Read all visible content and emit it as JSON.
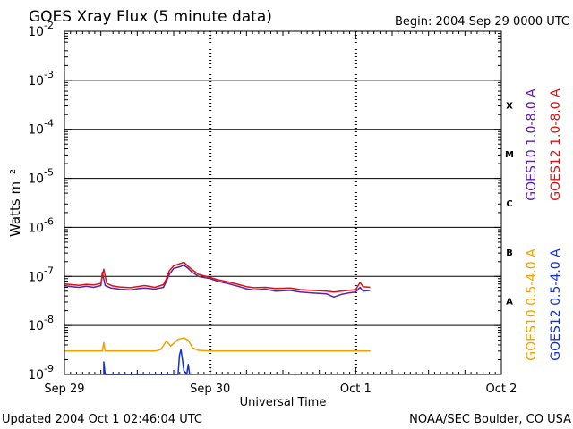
{
  "header": {
    "title": "GOES Xray Flux (5 minute data)",
    "begin": "Begin:  2004 Sep 29 0000 UTC"
  },
  "footer": {
    "updated": "Updated 2004 Oct  1 02:46:04 UTC",
    "credit": "NOAA/SEC Boulder, CO USA"
  },
  "chart_data": {
    "type": "line",
    "title": "GOES Xray Flux (5 minute data)",
    "xlabel": "Universal Time",
    "ylabel": "Watts m⁻²",
    "y_scale": "log",
    "ylim": [
      1e-09,
      0.01
    ],
    "xlim_days": [
      0,
      3
    ],
    "x_ticks": [
      {
        "label": "Sep 29",
        "day": 0
      },
      {
        "label": "Sep 30",
        "day": 1
      },
      {
        "label": "Oct 1",
        "day": 2
      },
      {
        "label": "Oct 2",
        "day": 3
      }
    ],
    "y_ticks": [
      {
        "mant": "10",
        "exp": "-9",
        "value": 1e-09
      },
      {
        "mant": "10",
        "exp": "-8",
        "value": 1e-08
      },
      {
        "mant": "10",
        "exp": "-7",
        "value": 1e-07
      },
      {
        "mant": "10",
        "exp": "-6",
        "value": 1e-06
      },
      {
        "mant": "10",
        "exp": "-5",
        "value": 1e-05
      },
      {
        "mant": "10",
        "exp": "-4",
        "value": 0.0001
      },
      {
        "mant": "10",
        "exp": "-3",
        "value": 0.001
      },
      {
        "mant": "10",
        "exp": "-2",
        "value": 0.01
      }
    ],
    "flare_classes": [
      {
        "label": "A",
        "value": 3.16e-08
      },
      {
        "label": "B",
        "value": 3.16e-07
      },
      {
        "label": "C",
        "value": 3.16e-06
      },
      {
        "label": "M",
        "value": 3.16e-05
      },
      {
        "label": "X",
        "value": 0.000316
      }
    ],
    "grid": "horizontal at each decade from 1e-8 to 1e-3; dashed verticals at day boundaries",
    "legend_position": "right",
    "series": [
      {
        "name": "GOES10 1.0-8.0 A",
        "color": "#5a20a8",
        "data": [
          [
            0.0,
            6.5e-08
          ],
          [
            0.05,
            6.2e-08
          ],
          [
            0.1,
            6e-08
          ],
          [
            0.15,
            6.3e-08
          ],
          [
            0.2,
            6e-08
          ],
          [
            0.25,
            6.5e-08
          ],
          [
            0.26,
            1.2e-07
          ],
          [
            0.28,
            6.5e-08
          ],
          [
            0.32,
            5.8e-08
          ],
          [
            0.38,
            5.5e-08
          ],
          [
            0.45,
            5.3e-08
          ],
          [
            0.5,
            5.6e-08
          ],
          [
            0.55,
            5.8e-08
          ],
          [
            0.62,
            5.5e-08
          ],
          [
            0.68,
            6e-08
          ],
          [
            0.7,
            8e-08
          ],
          [
            0.72,
            1.1e-07
          ],
          [
            0.75,
            1.45e-07
          ],
          [
            0.8,
            1.6e-07
          ],
          [
            0.82,
            1.7e-07
          ],
          [
            0.85,
            1.45e-07
          ],
          [
            0.88,
            1.2e-07
          ],
          [
            0.92,
            1e-07
          ],
          [
            1.0,
            9e-08
          ],
          [
            1.05,
            8e-08
          ],
          [
            1.12,
            7.2e-08
          ],
          [
            1.2,
            6.2e-08
          ],
          [
            1.25,
            5.6e-08
          ],
          [
            1.3,
            5.3e-08
          ],
          [
            1.38,
            5.5e-08
          ],
          [
            1.45,
            5e-08
          ],
          [
            1.55,
            5.2e-08
          ],
          [
            1.62,
            4.8e-08
          ],
          [
            1.7,
            4.6e-08
          ],
          [
            1.8,
            4.4e-08
          ],
          [
            1.85,
            3.8e-08
          ],
          [
            1.9,
            4.3e-08
          ],
          [
            1.95,
            4.6e-08
          ],
          [
            2.0,
            4.8e-08
          ],
          [
            2.03,
            6e-08
          ],
          [
            2.05,
            5e-08
          ],
          [
            2.1,
            5.2e-08
          ]
        ]
      },
      {
        "name": "GOES12 1.0-8.0 A",
        "color": "#e01010",
        "data": [
          [
            0.0,
            7e-08
          ],
          [
            0.05,
            6.8e-08
          ],
          [
            0.1,
            6.6e-08
          ],
          [
            0.15,
            6.9e-08
          ],
          [
            0.2,
            6.7e-08
          ],
          [
            0.25,
            7.2e-08
          ],
          [
            0.27,
            1.4e-07
          ],
          [
            0.29,
            7.2e-08
          ],
          [
            0.33,
            6.4e-08
          ],
          [
            0.38,
            6.1e-08
          ],
          [
            0.45,
            5.9e-08
          ],
          [
            0.5,
            6.2e-08
          ],
          [
            0.55,
            6.5e-08
          ],
          [
            0.62,
            6e-08
          ],
          [
            0.68,
            6.8e-08
          ],
          [
            0.7,
            9e-08
          ],
          [
            0.72,
            1.3e-07
          ],
          [
            0.75,
            1.65e-07
          ],
          [
            0.8,
            1.85e-07
          ],
          [
            0.82,
            1.95e-07
          ],
          [
            0.85,
            1.6e-07
          ],
          [
            0.88,
            1.35e-07
          ],
          [
            0.92,
            1.1e-07
          ],
          [
            1.0,
            9.5e-08
          ],
          [
            1.05,
            8.6e-08
          ],
          [
            1.12,
            7.8e-08
          ],
          [
            1.2,
            6.8e-08
          ],
          [
            1.25,
            6.2e-08
          ],
          [
            1.3,
            5.9e-08
          ],
          [
            1.38,
            6e-08
          ],
          [
            1.45,
            5.7e-08
          ],
          [
            1.55,
            5.8e-08
          ],
          [
            1.62,
            5.4e-08
          ],
          [
            1.7,
            5.2e-08
          ],
          [
            1.8,
            5e-08
          ],
          [
            1.85,
            4.8e-08
          ],
          [
            1.9,
            5e-08
          ],
          [
            1.95,
            5.2e-08
          ],
          [
            2.0,
            5.4e-08
          ],
          [
            2.03,
            7.5e-08
          ],
          [
            2.05,
            6.2e-08
          ],
          [
            2.1,
            6e-08
          ]
        ]
      },
      {
        "name": "GOES10 0.5-4.0 A",
        "color": "#f0a000",
        "data": [
          [
            0.0,
            3e-09
          ],
          [
            0.1,
            3e-09
          ],
          [
            0.2,
            3e-09
          ],
          [
            0.26,
            3e-09
          ],
          [
            0.27,
            4.5e-09
          ],
          [
            0.28,
            3e-09
          ],
          [
            0.38,
            3e-09
          ],
          [
            0.5,
            3e-09
          ],
          [
            0.62,
            3e-09
          ],
          [
            0.66,
            3.2e-09
          ],
          [
            0.7,
            4.8e-09
          ],
          [
            0.73,
            3.8e-09
          ],
          [
            0.78,
            5.2e-09
          ],
          [
            0.82,
            5.6e-09
          ],
          [
            0.85,
            5e-09
          ],
          [
            0.88,
            3.5e-09
          ],
          [
            0.92,
            3.1e-09
          ],
          [
            1.0,
            3e-09
          ],
          [
            1.2,
            3e-09
          ],
          [
            1.4,
            3e-09
          ],
          [
            1.6,
            3e-09
          ],
          [
            1.8,
            3e-09
          ],
          [
            1.9,
            3e-09
          ],
          [
            2.0,
            3e-09
          ],
          [
            2.1,
            3e-09
          ]
        ]
      },
      {
        "name": "GOES12 0.5-4.0 A",
        "color": "#1030e0",
        "data": [
          [
            0.27,
            1e-09
          ],
          [
            0.27,
            1.8e-09
          ],
          [
            0.28,
            1e-09
          ],
          [
            0.78,
            1e-09
          ],
          [
            0.79,
            2.5e-09
          ],
          [
            0.8,
            3.2e-09
          ],
          [
            0.81,
            2e-09
          ],
          [
            0.82,
            1.2e-09
          ],
          [
            0.84,
            1e-09
          ],
          [
            0.85,
            1.6e-09
          ],
          [
            0.86,
            1e-09
          ]
        ]
      }
    ]
  }
}
